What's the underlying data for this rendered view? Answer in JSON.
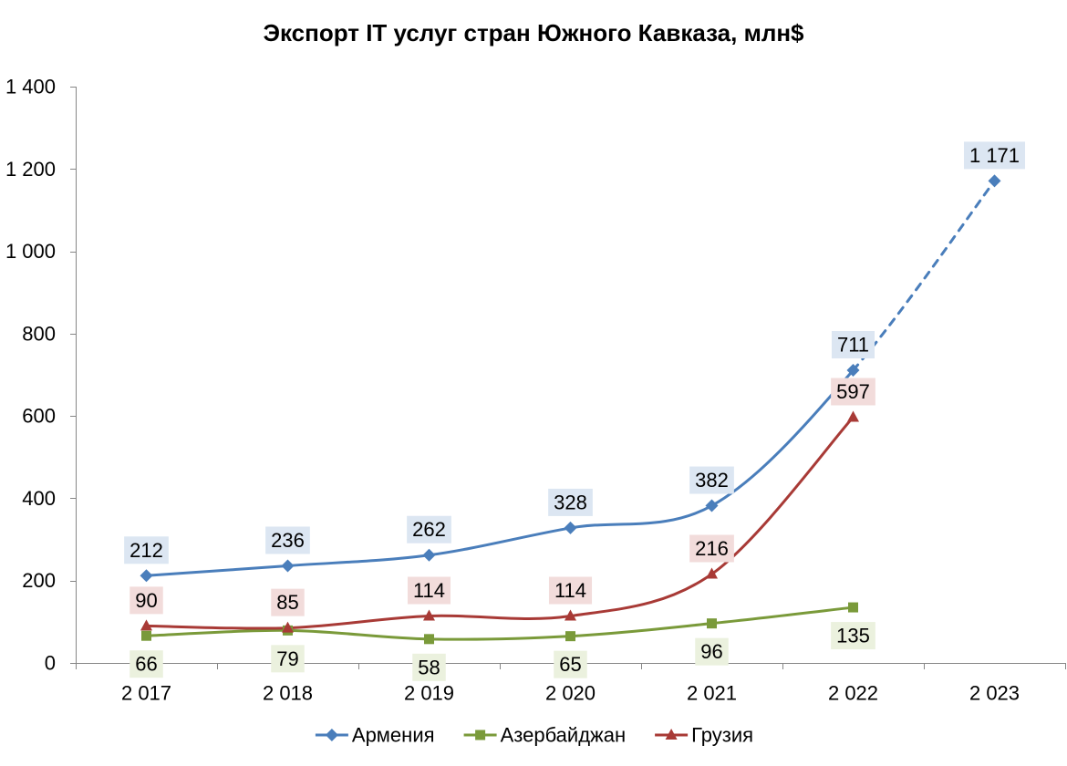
{
  "chart_data": {
    "type": "line",
    "title": "Экспорт IT услуг стран Южного Кавказа, млн$",
    "categories": [
      "2 017",
      "2 018",
      "2 019",
      "2 020",
      "2 021",
      "2 022",
      "2 023"
    ],
    "ylim": [
      0,
      1400
    ],
    "yticks": [
      0,
      200,
      400,
      600,
      800,
      1000,
      1200,
      1400
    ],
    "ytick_labels": [
      "0",
      "200",
      "400",
      "600",
      "800",
      "1 000",
      "1 200",
      "1 400"
    ],
    "grid": false,
    "smooth_lines": true,
    "legend": "bottom",
    "series": [
      {
        "name": "Армения",
        "values": [
          212,
          236,
          262,
          328,
          382,
          711,
          1171
        ],
        "data_labels": [
          "212",
          "236",
          "262",
          "328",
          "382",
          "711",
          "1 171"
        ],
        "label_position": "above",
        "marker": "diamond",
        "color": "#4A7EBB",
        "label_background": "#DCE6F2",
        "dashed_segment": [
          "2 022",
          "2 023"
        ]
      },
      {
        "name": "Азербайджан",
        "values": [
          66,
          79,
          58,
          65,
          96,
          135,
          null
        ],
        "data_labels": [
          "66",
          "79",
          "58",
          "65",
          "96",
          "135",
          null
        ],
        "label_position": "below",
        "marker": "square",
        "color": "#7A9A3A",
        "label_background": "#EBF1DE"
      },
      {
        "name": "Грузия",
        "values": [
          90,
          85,
          114,
          114,
          216,
          597,
          null
        ],
        "data_labels": [
          "90",
          "85",
          "114",
          "114",
          "216",
          "597",
          null
        ],
        "label_position": "above",
        "marker": "triangle",
        "color": "#A83A36",
        "label_background": "#F2DCDB"
      }
    ]
  }
}
